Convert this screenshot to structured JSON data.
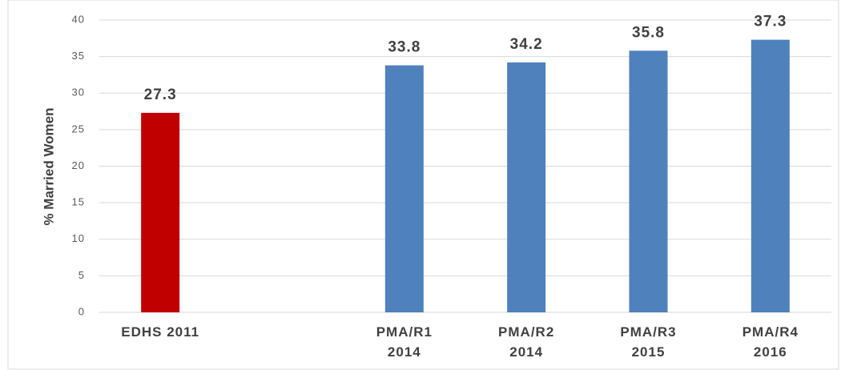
{
  "chart_data": {
    "type": "bar",
    "y_label": "% Married Women",
    "categories": [
      "EDHS 2011",
      null,
      "PMA/R1\n2014",
      "PMA/R2\n2014",
      "PMA/R3\n2015",
      "PMA/R4\n2016"
    ],
    "values": [
      27.3,
      null,
      33.8,
      34.2,
      35.8,
      37.3
    ],
    "colors": [
      "#c00000",
      null,
      "#4f81bd",
      "#4f81bd",
      "#4f81bd",
      "#4f81bd"
    ],
    "ylim": [
      0,
      40
    ],
    "yticks": [
      0,
      5,
      10,
      15,
      20,
      25,
      30,
      35,
      40
    ],
    "grid": true
  }
}
